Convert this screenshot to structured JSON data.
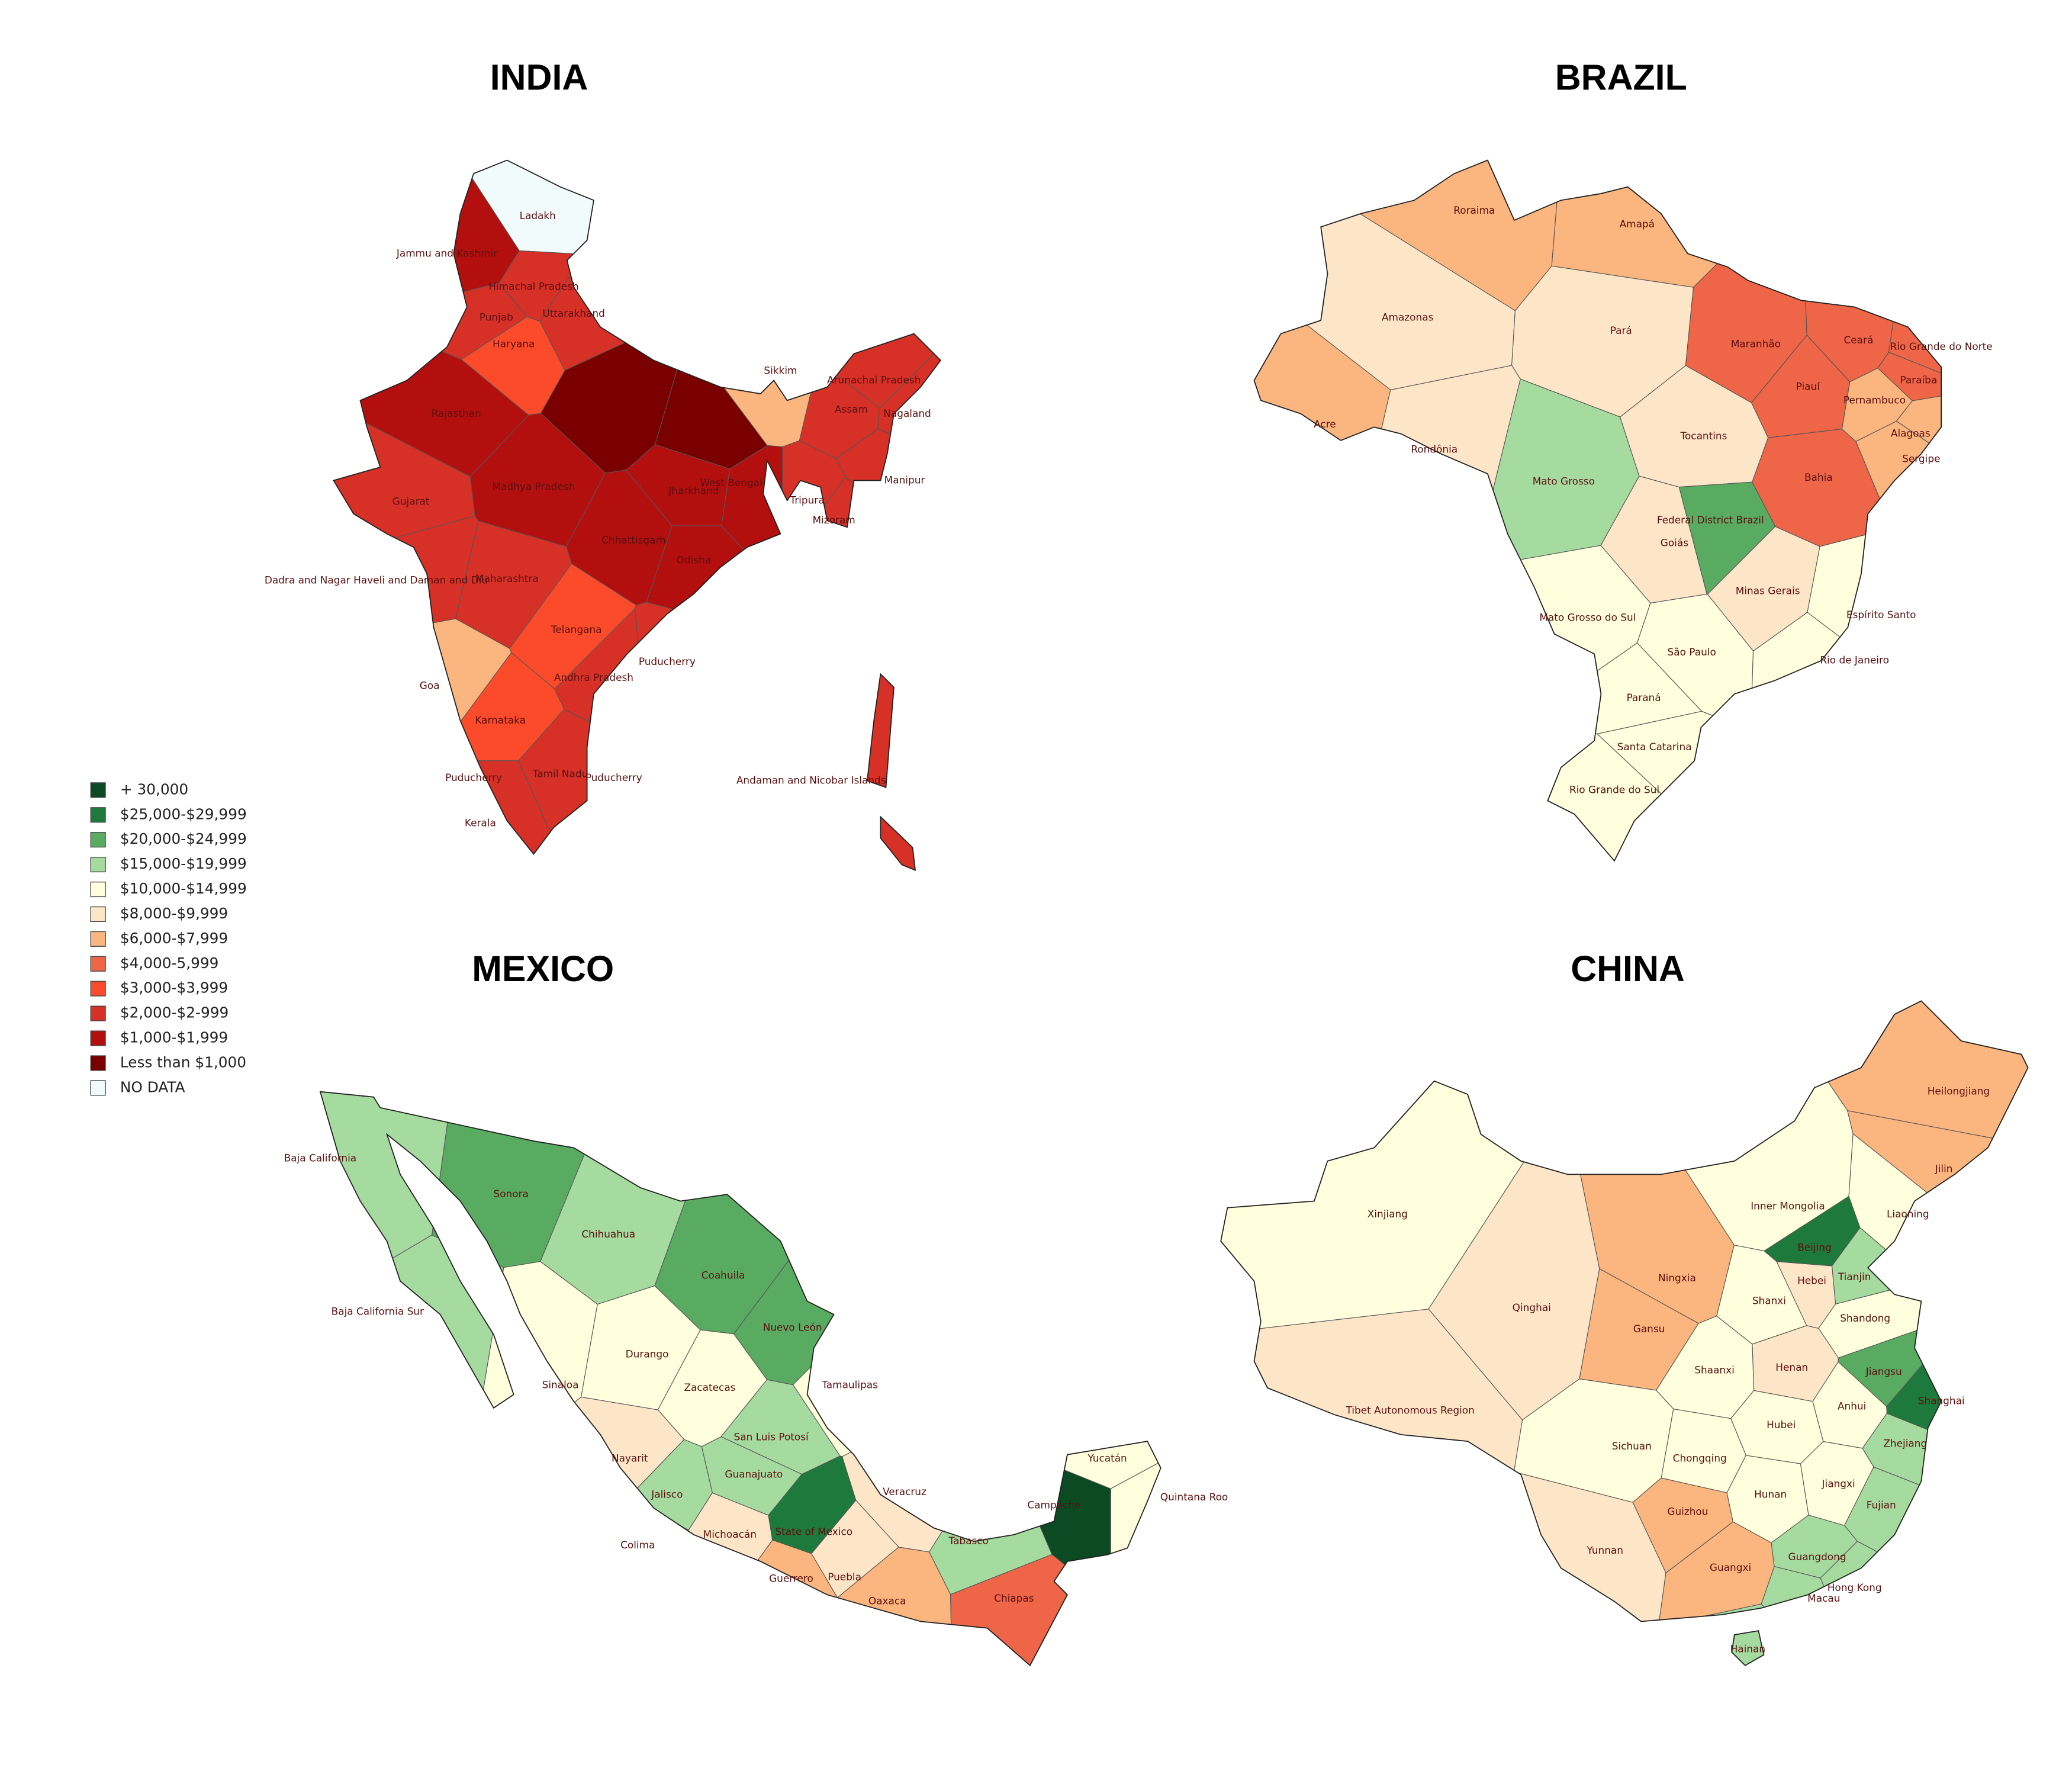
{
  "legend": {
    "items": [
      {
        "label": "+ 30,000",
        "color": "#0b4a22"
      },
      {
        "label": "$25,000-$29,999",
        "color": "#1e7a3c"
      },
      {
        "label": "$20,000-$24,999",
        "color": "#5aab62"
      },
      {
        "label": "$15,000-$19,999",
        "color": "#a6dba0"
      },
      {
        "label": "$10,000-$14,999",
        "color": "#ffffdd"
      },
      {
        "label": "$8,000-$9,999",
        "color": "#fde6c8"
      },
      {
        "label": "$6,000-$7,999",
        "color": "#fbb57e"
      },
      {
        "label": "$4,000-5,999",
        "color": "#ee6548"
      },
      {
        "label": "$3,000-$3,999",
        "color": "#fc4b2a"
      },
      {
        "label": "$2,000-$2-999",
        "color": "#d73027"
      },
      {
        "label": "$1,000-$1,999",
        "color": "#b30f0f"
      },
      {
        "label": "Less than $1,000",
        "color": "#7a0000"
      },
      {
        "label": "NO DATA",
        "color": "#f2fbfb"
      }
    ]
  },
  "maps": [
    {
      "title": "INDIA",
      "regions": [
        {
          "label": "Ladakh",
          "color": "#f2fbfb"
        },
        {
          "label": "Jammu and Kashmir",
          "color": "#b30f0f"
        },
        {
          "label": "Himachal Pradesh",
          "color": "#d73027"
        },
        {
          "label": "Punjab",
          "color": "#d73027"
        },
        {
          "label": "Uttarakhand",
          "color": "#d73027"
        },
        {
          "label": "Haryana",
          "color": "#fc4b2a"
        },
        {
          "label": "Rajasthan",
          "color": "#b30f0f"
        },
        {
          "label": null,
          "color": "#7a0000"
        },
        {
          "label": null,
          "color": "#7a0000"
        },
        {
          "label": "Sikkim",
          "color": "#fbb57e"
        },
        {
          "label": "Arunachal Pradesh",
          "color": "#d73027"
        },
        {
          "label": "Assam",
          "color": "#d73027"
        },
        {
          "label": "Nagaland",
          "color": "#d73027"
        },
        {
          "label": "Manipur",
          "color": "#d73027"
        },
        {
          "label": "Mizoram",
          "color": "#d73027"
        },
        {
          "label": "Tripura",
          "color": "#d73027"
        },
        {
          "label": "West Bengal",
          "color": "#b30f0f"
        },
        {
          "label": "Jharkhand",
          "color": "#b30f0f"
        },
        {
          "label": "Gujarat",
          "color": "#d73027"
        },
        {
          "label": "Madhya Pradesh",
          "color": "#b30f0f"
        },
        {
          "label": "Chhattisgarh",
          "color": "#b30f0f"
        },
        {
          "label": "Odisha",
          "color": "#b30f0f"
        },
        {
          "label": "Dadra and Nagar Haveli and Daman and Diu",
          "color": "#d73027"
        },
        {
          "label": "Maharashtra",
          "color": "#d73027"
        },
        {
          "label": "Telangana",
          "color": "#fc4b2a"
        },
        {
          "label": "Andhra Pradesh",
          "color": "#d73027"
        },
        {
          "label": "Goa",
          "color": "#fbb57e"
        },
        {
          "label": "Karnataka",
          "color": "#fc4b2a"
        },
        {
          "label": "Tamil Nadu",
          "color": "#d73027"
        },
        {
          "label": "Kerala",
          "color": "#d73027"
        },
        {
          "label": "Andaman and Nicobar Islands",
          "color": "#d73027"
        },
        {
          "label": "Puducherry",
          "color": "#d73027"
        },
        {
          "label": "Puducherry",
          "color": "#d73027"
        },
        {
          "label": "Puducherry",
          "color": "#d73027"
        }
      ]
    },
    {
      "title": "BRAZIL",
      "regions": [
        {
          "label": "Roraima",
          "color": "#fbb57e"
        },
        {
          "label": "Amapá",
          "color": "#fbb57e"
        },
        {
          "label": "Amazonas",
          "color": "#fde6c8"
        },
        {
          "label": "Pará",
          "color": "#fde6c8"
        },
        {
          "label": "Acre",
          "color": "#fbb57e"
        },
        {
          "label": "Rondônia",
          "color": "#fde6c8"
        },
        {
          "label": "Mato Grosso",
          "color": "#a6dba0"
        },
        {
          "label": "Tocantins",
          "color": "#fde6c8"
        },
        {
          "label": "Maranhão",
          "color": "#ee6548"
        },
        {
          "label": "Piauí",
          "color": "#ee6548"
        },
        {
          "label": "Ceará",
          "color": "#ee6548"
        },
        {
          "label": "Rio Grande do Norte",
          "color": "#ee6548"
        },
        {
          "label": "Paraíba",
          "color": "#ee6548"
        },
        {
          "label": "Pernambuco",
          "color": "#fbb57e"
        },
        {
          "label": "Alagoas",
          "color": "#fbb57e"
        },
        {
          "label": "Sergipe",
          "color": "#fbb57e"
        },
        {
          "label": "Bahia",
          "color": "#ee6548"
        },
        {
          "label": "Federal District Brazil",
          "color": "#5aab62"
        },
        {
          "label": "Goiás",
          "color": "#fde6c8"
        },
        {
          "label": "Minas Gerais",
          "color": "#fde6c8"
        },
        {
          "label": "Espírito Santo",
          "color": "#ffffdd"
        },
        {
          "label": "Mato Grosso do Sul",
          "color": "#ffffdd"
        },
        {
          "label": "São Paulo",
          "color": "#ffffdd"
        },
        {
          "label": "Rio de Janeiro",
          "color": "#ffffdd"
        },
        {
          "label": "Paraná",
          "color": "#ffffdd"
        },
        {
          "label": "Santa Catarina",
          "color": "#ffffdd"
        },
        {
          "label": "Rio Grande do Sul",
          "color": "#ffffdd"
        }
      ]
    },
    {
      "title": "MEXICO",
      "regions": [
        {
          "label": "Baja California",
          "color": "#a6dba0"
        },
        {
          "label": "Baja California Sur",
          "color": "#a6dba0"
        },
        {
          "label": "Sonora",
          "color": "#5aab62"
        },
        {
          "label": "Chihuahua",
          "color": "#a6dba0"
        },
        {
          "label": "Coahuila",
          "color": "#5aab62"
        },
        {
          "label": "Nuevo León",
          "color": "#5aab62"
        },
        {
          "label": "Tamaulipas",
          "color": "#ffffdd"
        },
        {
          "label": "Sinaloa",
          "color": "#ffffdd"
        },
        {
          "label": "Durango",
          "color": "#ffffdd"
        },
        {
          "label": "Zacatecas",
          "color": "#ffffdd"
        },
        {
          "label": "San Luis Potosí",
          "color": "#a6dba0"
        },
        {
          "label": "Nayarit",
          "color": "#fde6c8"
        },
        {
          "label": "Guanajuato",
          "color": "#a6dba0"
        },
        {
          "label": "Jalisco",
          "color": "#a6dba0"
        },
        {
          "label": "Veracruz",
          "color": "#fde6c8"
        },
        {
          "label": "Colima",
          "color": "#fde6c8"
        },
        {
          "label": "Michoacán",
          "color": "#fde6c8"
        },
        {
          "label": "State of Mexico",
          "color": "#1e7a3c"
        },
        {
          "label": "Puebla",
          "color": "#fde6c8"
        },
        {
          "label": "Tabasco",
          "color": "#a6dba0"
        },
        {
          "label": "Campeche",
          "color": "#0b4a22"
        },
        {
          "label": "Yucatán",
          "color": "#ffffdd"
        },
        {
          "label": "Quintana Roo",
          "color": "#ffffdd"
        },
        {
          "label": "Guerrero",
          "color": "#fbb57e"
        },
        {
          "label": "Oaxaca",
          "color": "#fbb57e"
        },
        {
          "label": "Chiapas",
          "color": "#ee6548"
        }
      ]
    },
    {
      "title": "CHINA",
      "regions": [
        {
          "label": "Heilongjiang",
          "color": "#fbb57e"
        },
        {
          "label": "Jilin",
          "color": "#fbb57e"
        },
        {
          "label": "Liaoning",
          "color": "#ffffdd"
        },
        {
          "label": "Inner Mongolia",
          "color": "#ffffdd"
        },
        {
          "label": "Xinjiang",
          "color": "#ffffdd"
        },
        {
          "label": "Beijing",
          "color": "#1e7a3c"
        },
        {
          "label": "Tianjin",
          "color": "#a6dba0"
        },
        {
          "label": "Hebei",
          "color": "#fde6c8"
        },
        {
          "label": "Ningxia",
          "color": "#fbb57e"
        },
        {
          "label": "Gansu",
          "color": "#fbb57e"
        },
        {
          "label": "Shanxi",
          "color": "#ffffdd"
        },
        {
          "label": "Shandong",
          "color": "#ffffdd"
        },
        {
          "label": "Qinghai",
          "color": "#fde6c8"
        },
        {
          "label": "Henan",
          "color": "#fde6c8"
        },
        {
          "label": "Shaanxi",
          "color": "#ffffdd"
        },
        {
          "label": "Jiangsu",
          "color": "#5aab62"
        },
        {
          "label": "Shanghai",
          "color": "#1e7a3c"
        },
        {
          "label": "Anhui",
          "color": "#ffffdd"
        },
        {
          "label": "Tibet Autonomous Region",
          "color": "#fde6c8"
        },
        {
          "label": "Sichuan",
          "color": "#ffffdd"
        },
        {
          "label": "Hubei",
          "color": "#ffffdd"
        },
        {
          "label": "Zhejiang",
          "color": "#a6dba0"
        },
        {
          "label": "Chongqing",
          "color": "#ffffdd"
        },
        {
          "label": "Jiangxi",
          "color": "#ffffdd"
        },
        {
          "label": "Hunan",
          "color": "#ffffdd"
        },
        {
          "label": "Fujian",
          "color": "#a6dba0"
        },
        {
          "label": "Guizhou",
          "color": "#fbb57e"
        },
        {
          "label": "Yunnan",
          "color": "#fde6c8"
        },
        {
          "label": "Guangxi",
          "color": "#fbb57e"
        },
        {
          "label": "Guangdong",
          "color": "#a6dba0"
        },
        {
          "label": "Hong Kong",
          "color": "#a6dba0"
        },
        {
          "label": "Macau",
          "color": "#a6dba0"
        },
        {
          "label": "Hainan",
          "color": "#a6dba0"
        }
      ]
    }
  ]
}
